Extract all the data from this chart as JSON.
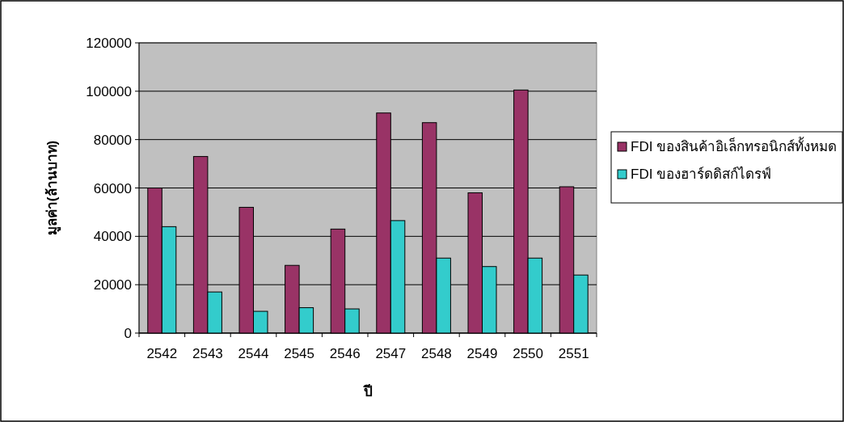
{
  "chart_data": {
    "type": "bar",
    "xlabel": "ปี",
    "ylabel": "มูลค่า(ล้านบาท)",
    "categories": [
      "2542",
      "2543",
      "2544",
      "2545",
      "2546",
      "2547",
      "2548",
      "2549",
      "2550",
      "2551"
    ],
    "series": [
      {
        "name": "FDI ของสินค้าอิเล็กทรอนิกส์ทั้งหมด",
        "color": "#993366",
        "values": [
          60000,
          73000,
          52000,
          28000,
          43000,
          91000,
          87000,
          58000,
          100500,
          60500
        ]
      },
      {
        "name": "FDI ของฮาร์ดดิสก์ไดรฟ์",
        "color": "#33cccc",
        "values": [
          44000,
          17000,
          9000,
          10500,
          10000,
          46500,
          31000,
          27500,
          31000,
          24000
        ]
      }
    ],
    "ylim": [
      0,
      120000
    ],
    "yticks": [
      0,
      20000,
      40000,
      60000,
      80000,
      100000,
      120000
    ],
    "grid": "y",
    "legend": "right"
  }
}
